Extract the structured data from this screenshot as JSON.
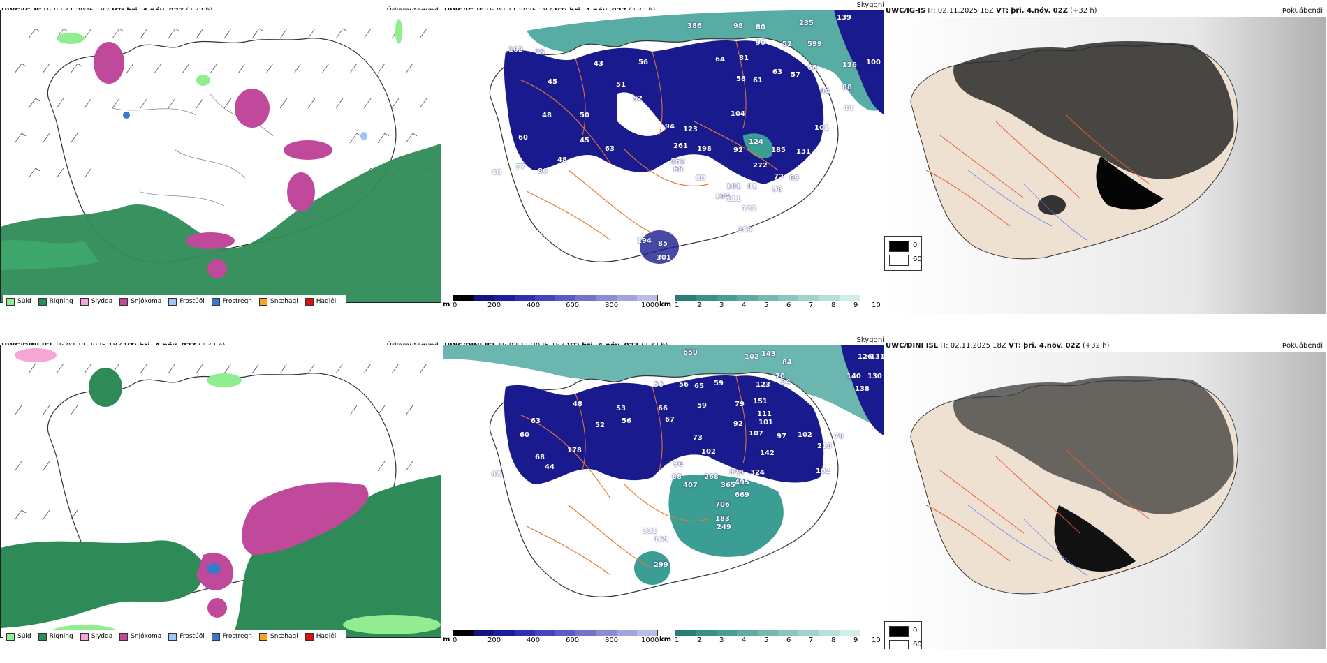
{
  "rows": [
    {
      "model": "UWC/IG-IS",
      "it_label": "IT:",
      "it_value": "02.11.2025 18Z",
      "vt_label": "VT:",
      "vt_value": "þri. 4.nóv. 02Z",
      "lead": "(+32 h)",
      "panel_titles": [
        "Úrkomutegund",
        "Skyggni",
        "Þokuábendi"
      ],
      "cloud_labels": [
        "386",
        "98",
        "80",
        "235",
        "139",
        "102",
        "75",
        "90",
        "52",
        "599",
        "52",
        "43",
        "56",
        "64",
        "81",
        "63",
        "57",
        "66",
        "45",
        "51",
        "45",
        "58",
        "61",
        "94",
        "59",
        "52",
        "63",
        "104",
        "44",
        "48",
        "50",
        "113",
        "63",
        "94",
        "123",
        "92",
        "101",
        "45",
        "83",
        "261",
        "198",
        "124",
        "185",
        "131",
        "60",
        "77",
        "48",
        "86",
        "162",
        "272",
        "72",
        "69",
        "48",
        "68",
        "80",
        "101",
        "91",
        "98",
        "111",
        "123",
        "104",
        "126",
        "100",
        "88",
        "189",
        "194",
        "85",
        "301"
      ],
      "vis_labels": [],
      "legend": [
        "Súld",
        "Rigning",
        "Slydda",
        "Snjókoma",
        "Frostúði",
        "Frostregn",
        "Snæhagl",
        "Haglél"
      ]
    },
    {
      "model": "UWC/DINI ISL",
      "it_label": "IT:",
      "it_value": "02.11.2025 18Z",
      "vt_label": "VT:",
      "vt_value": "þri. 4.nóv. 02Z",
      "lead": "(+32 h)",
      "panel_titles": [
        "Úrkomutegund",
        "Skyggni",
        "Þokuábendi"
      ],
      "cloud_labels": [
        "650",
        "102",
        "143",
        "84",
        "126",
        "131",
        "140",
        "130",
        "138",
        "94",
        "56",
        "56",
        "59",
        "123",
        "70",
        "65",
        "79",
        "151",
        "48",
        "53",
        "66",
        "111",
        "101",
        "97",
        "63",
        "60",
        "56",
        "67",
        "59",
        "92",
        "107",
        "102",
        "52",
        "73",
        "102",
        "142",
        "96",
        "268",
        "378",
        "324",
        "68",
        "44",
        "178",
        "88",
        "407",
        "365",
        "495",
        "669",
        "706",
        "183",
        "249",
        "331",
        "169",
        "299",
        "48",
        "102",
        "216",
        "76"
      ],
      "legend": [
        "Súld",
        "Rigning",
        "Slydda",
        "Snjókoma",
        "Frostúði",
        "Frostregn",
        "Snæhagl",
        "Haglél"
      ]
    }
  ],
  "colorbars": {
    "height": {
      "unit": "m",
      "ticks": [
        "0",
        "200",
        "400",
        "600",
        "800",
        "1000"
      ]
    },
    "visibility": {
      "unit": "km",
      "ticks": [
        "1",
        "2",
        "3",
        "4",
        "5",
        "6",
        "7",
        "8",
        "9",
        "10"
      ]
    },
    "fog": {
      "values": [
        "0",
        "60"
      ]
    }
  },
  "colors": {
    "sudl": "#90ee90",
    "rigning": "#2e8b57",
    "slydda": "#f4a6d7",
    "snjokoma": "#c0499c",
    "frostudi": "#9fc5f8",
    "frostregn": "#3a78c9",
    "snaehagl": "#f5a623",
    "haglel": "#e01010",
    "cloud_dark": "#1a1a8f",
    "vis_teal": "#3a9e94"
  }
}
